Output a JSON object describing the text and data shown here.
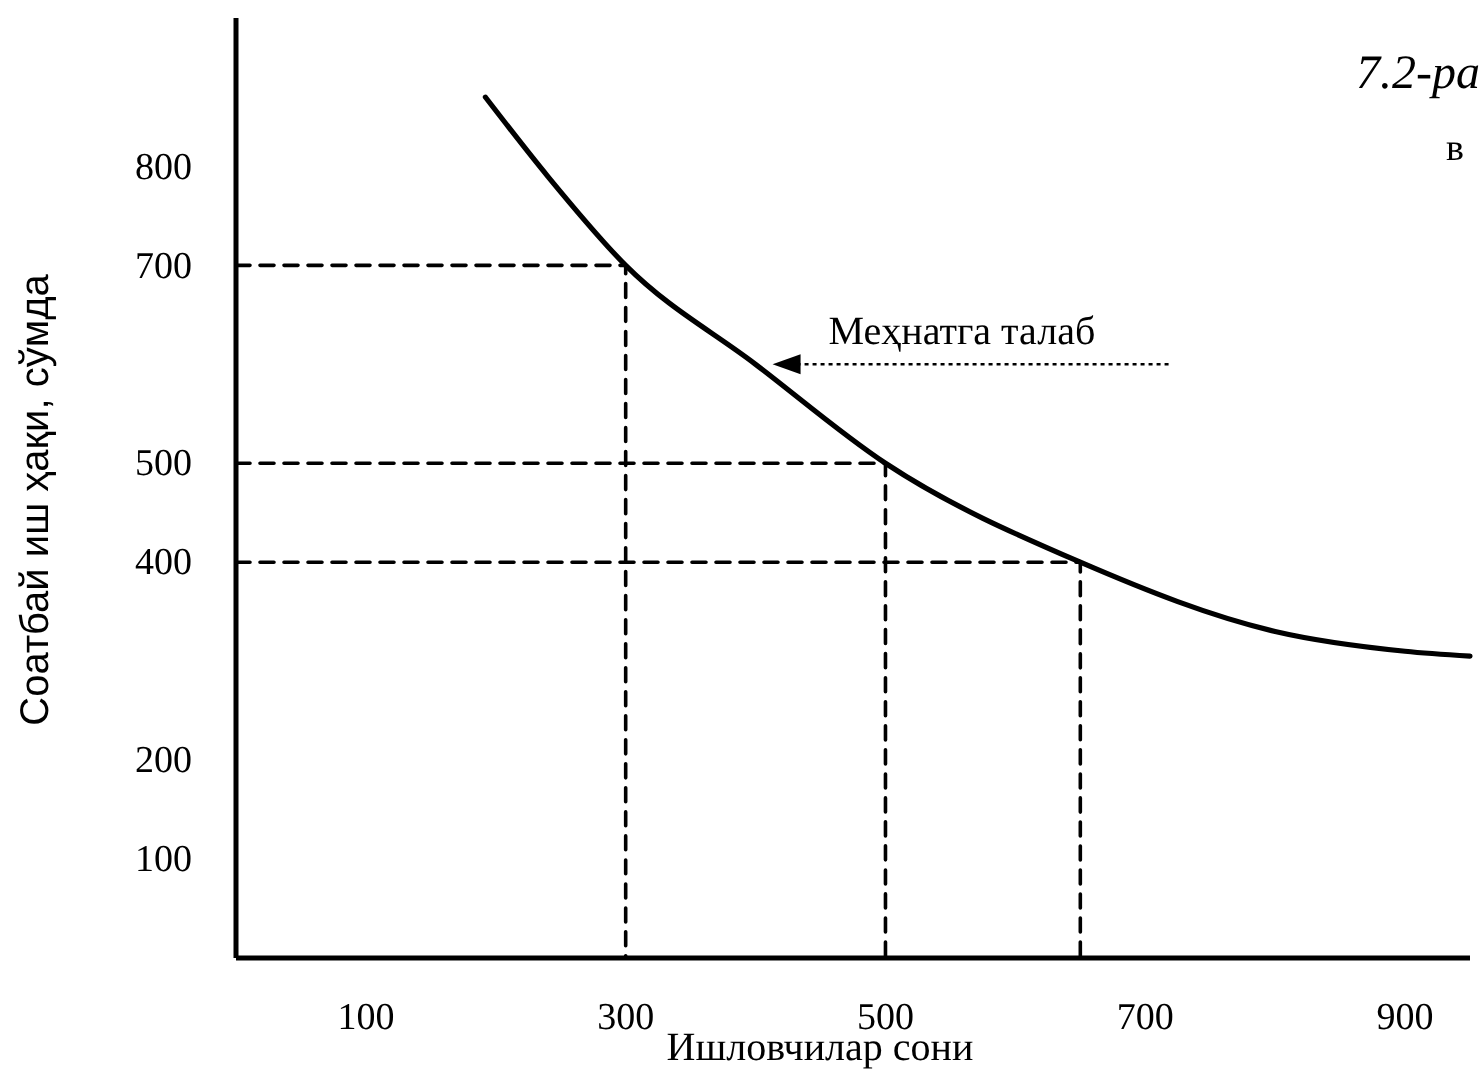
{
  "chart_data": {
    "type": "line",
    "title": "7.2-ра",
    "subtitle": "в",
    "xlabel": "Ишловчилар сони",
    "ylabel": "Соатбай иш ҳақи, сўмда",
    "xlim": [
      0,
      950
    ],
    "ylim": [
      0,
      950
    ],
    "xticks": [
      100,
      300,
      500,
      700,
      900
    ],
    "yticks": [
      100,
      200,
      400,
      500,
      700,
      800
    ],
    "grid": false,
    "series": [
      {
        "color": "#000000",
        "x": [
          192,
          240,
          300,
          400,
          500,
          650,
          800,
          900,
          950
        ],
        "values": [
          870,
          790,
          700,
          600,
          500,
          400,
          330,
          310,
          305
        ]
      },
      {
        "color": "#000000",
        "line_style": "dashed",
        "x": [
          0,
          300,
          300
        ],
        "values": [
          700,
          700,
          0
        ]
      },
      {
        "color": "#000000",
        "line_style": "dashed",
        "x": [
          0,
          500,
          500
        ],
        "values": [
          500,
          500,
          0
        ]
      },
      {
        "color": "#000000",
        "line_style": "dashed",
        "x": [
          0,
          650,
          650
        ],
        "values": [
          400,
          400,
          0
        ]
      }
    ],
    "annotations": [
      {
        "text": "Меҳнатга талаб",
        "x": 410,
        "y": 600
      }
    ]
  }
}
